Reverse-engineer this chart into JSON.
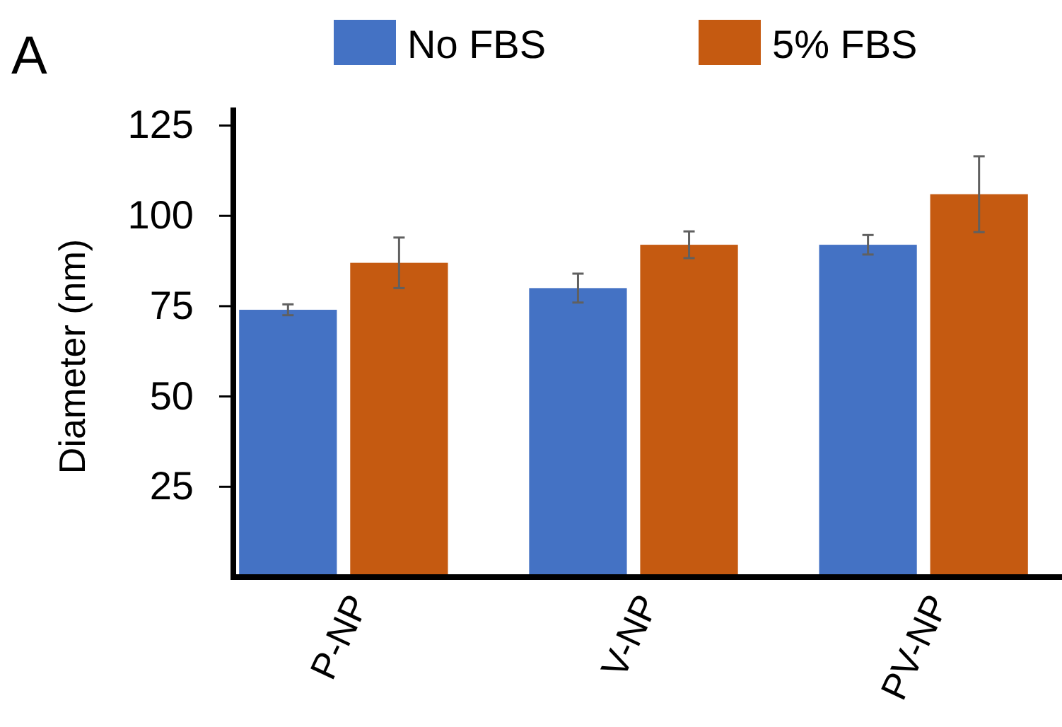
{
  "chart_data": {
    "type": "bar",
    "ylabel": "Diameter (nm)",
    "annotations": [
      "A"
    ],
    "categories": [
      "P-NP",
      "V-NP",
      "PV-NP"
    ],
    "series": [
      {
        "name": "No FBS",
        "color": "#4472c4",
        "values": [
          74,
          80,
          92
        ],
        "errors": [
          1.5,
          4,
          2.7
        ]
      },
      {
        "name": "5% FBS",
        "color": "#c55a11",
        "values": [
          87,
          92,
          106
        ],
        "errors": [
          7,
          3.7,
          10.5
        ]
      }
    ],
    "ylim": [
      0,
      130
    ],
    "yticks": [
      25,
      50,
      75,
      100,
      125
    ],
    "legend": "top"
  }
}
